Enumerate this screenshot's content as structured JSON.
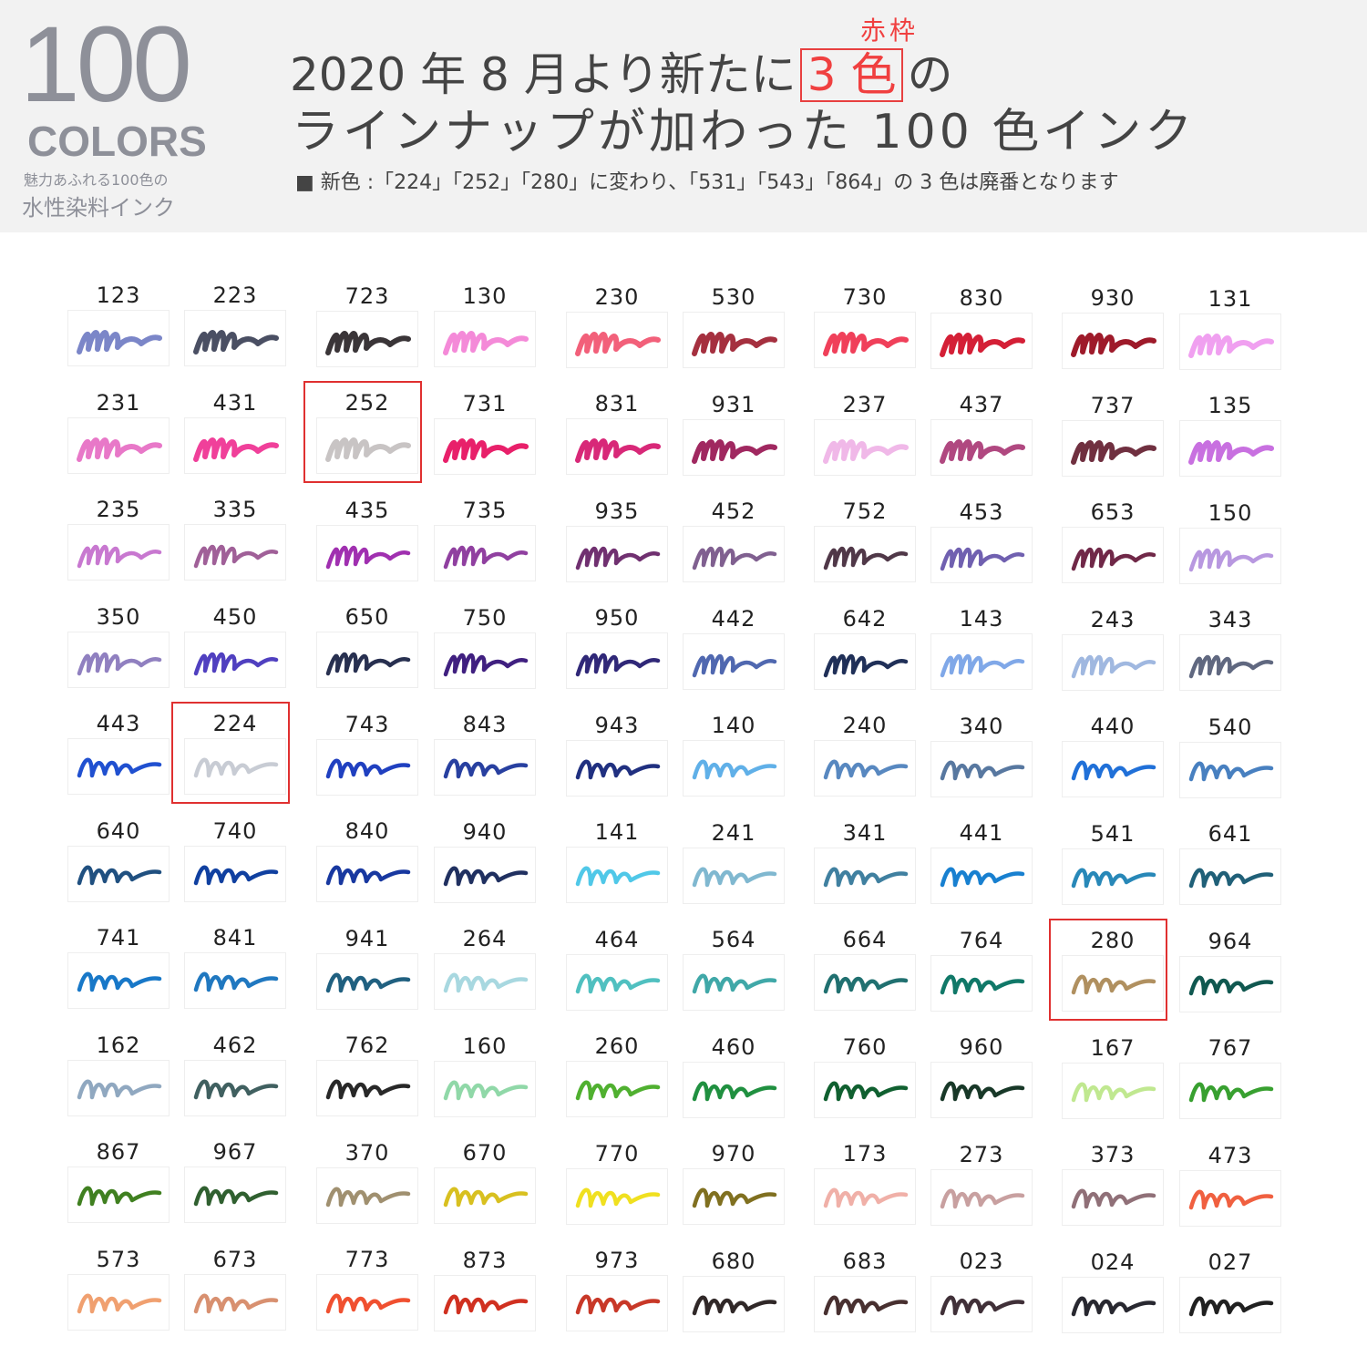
{
  "header": {
    "big_number": "100",
    "colors_label": "COLORS",
    "tagline_1": "魅力あふれる100色の",
    "tagline_2": "水性染料インク",
    "headline_pre": "2020 年 8 月より新たに",
    "headline_highlight": "3 色",
    "headline_post": "の",
    "highlight_note": "赤枠",
    "headline_line2": "ラインナップが加わった 100 色インク",
    "subnote": "■ 新色 :「224」「252」「280」に変わり、「531」「543」「864」の 3 色は廃番となります",
    "accent_color": "#e84040"
  },
  "swatches": [
    {
      "code": "123",
      "color": "#7b86c8"
    },
    {
      "code": "223",
      "color": "#4a4f63"
    },
    {
      "code": "723",
      "color": "#3a3538"
    },
    {
      "code": "130",
      "color": "#f48ad8"
    },
    {
      "code": "230",
      "color": "#f2607a"
    },
    {
      "code": "530",
      "color": "#a5303f"
    },
    {
      "code": "730",
      "color": "#f0405a"
    },
    {
      "code": "830",
      "color": "#d41f36"
    },
    {
      "code": "930",
      "color": "#9e1a2a"
    },
    {
      "code": "131",
      "color": "#f0a0f0"
    },
    {
      "code": "231",
      "color": "#e878c8"
    },
    {
      "code": "431",
      "color": "#f0409a"
    },
    {
      "code": "252",
      "color": "#c8c4c4",
      "new": true
    },
    {
      "code": "731",
      "color": "#e8206a"
    },
    {
      "code": "831",
      "color": "#d82878"
    },
    {
      "code": "931",
      "color": "#a02860"
    },
    {
      "code": "237",
      "color": "#f0b8e8"
    },
    {
      "code": "437",
      "color": "#b04880"
    },
    {
      "code": "737",
      "color": "#703040"
    },
    {
      "code": "135",
      "color": "#c870e0"
    },
    {
      "code": "235",
      "color": "#c878d0"
    },
    {
      "code": "335",
      "color": "#a06098"
    },
    {
      "code": "435",
      "color": "#a030b0"
    },
    {
      "code": "735",
      "color": "#9040a0"
    },
    {
      "code": "935",
      "color": "#703070"
    },
    {
      "code": "452",
      "color": "#806090"
    },
    {
      "code": "752",
      "color": "#503848"
    },
    {
      "code": "453",
      "color": "#7060b0"
    },
    {
      "code": "653",
      "color": "#702848"
    },
    {
      "code": "150",
      "color": "#b898e0"
    },
    {
      "code": "350",
      "color": "#9080c0"
    },
    {
      "code": "450",
      "color": "#5040c0"
    },
    {
      "code": "650",
      "color": "#283050"
    },
    {
      "code": "750",
      "color": "#402080"
    },
    {
      "code": "950",
      "color": "#302878"
    },
    {
      "code": "442",
      "color": "#5068b0"
    },
    {
      "code": "642",
      "color": "#203058"
    },
    {
      "code": "143",
      "color": "#80a8e8"
    },
    {
      "code": "243",
      "color": "#a0b8e0"
    },
    {
      "code": "343",
      "color": "#606880"
    },
    {
      "code": "443",
      "color": "#2050d0"
    },
    {
      "code": "224",
      "color": "#c8ccd4",
      "new": true
    },
    {
      "code": "743",
      "color": "#2040c0"
    },
    {
      "code": "843",
      "color": "#2840a0"
    },
    {
      "code": "943",
      "color": "#203080"
    },
    {
      "code": "140",
      "color": "#60b0e8"
    },
    {
      "code": "240",
      "color": "#5888c0"
    },
    {
      "code": "340",
      "color": "#5878a0"
    },
    {
      "code": "440",
      "color": "#2070d8"
    },
    {
      "code": "540",
      "color": "#4880c0"
    },
    {
      "code": "640",
      "color": "#205080"
    },
    {
      "code": "740",
      "color": "#1040a0"
    },
    {
      "code": "840",
      "color": "#1838a0"
    },
    {
      "code": "940",
      "color": "#203060"
    },
    {
      "code": "141",
      "color": "#50c8e8"
    },
    {
      "code": "241",
      "color": "#80b8d0"
    },
    {
      "code": "341",
      "color": "#4080a0"
    },
    {
      "code": "441",
      "color": "#1880d0"
    },
    {
      "code": "541",
      "color": "#2888b8"
    },
    {
      "code": "641",
      "color": "#206078"
    },
    {
      "code": "741",
      "color": "#1878c8"
    },
    {
      "code": "841",
      "color": "#2078c0"
    },
    {
      "code": "941",
      "color": "#206080"
    },
    {
      "code": "264",
      "color": "#a8d8e0"
    },
    {
      "code": "464",
      "color": "#50c0c0"
    },
    {
      "code": "564",
      "color": "#40a8a8"
    },
    {
      "code": "664",
      "color": "#207070"
    },
    {
      "code": "764",
      "color": "#107868"
    },
    {
      "code": "280",
      "color": "#b09060",
      "new": true
    },
    {
      "code": "964",
      "color": "#105850"
    },
    {
      "code": "162",
      "color": "#90a8c0"
    },
    {
      "code": "462",
      "color": "#406060"
    },
    {
      "code": "762",
      "color": "#282828"
    },
    {
      "code": "160",
      "color": "#90d8a8"
    },
    {
      "code": "260",
      "color": "#50b030"
    },
    {
      "code": "460",
      "color": "#209040"
    },
    {
      "code": "760",
      "color": "#106030"
    },
    {
      "code": "960",
      "color": "#183828"
    },
    {
      "code": "167",
      "color": "#c0e890"
    },
    {
      "code": "767",
      "color": "#38a030"
    },
    {
      "code": "867",
      "color": "#408020"
    },
    {
      "code": "967",
      "color": "#306030"
    },
    {
      "code": "370",
      "color": "#a09070"
    },
    {
      "code": "670",
      "color": "#d8c020"
    },
    {
      "code": "770",
      "color": "#f0e020"
    },
    {
      "code": "970",
      "color": "#807020"
    },
    {
      "code": "173",
      "color": "#f0b0a8"
    },
    {
      "code": "273",
      "color": "#c8a0a0"
    },
    {
      "code": "373",
      "color": "#907078"
    },
    {
      "code": "473",
      "color": "#f06040"
    },
    {
      "code": "573",
      "color": "#f0a070"
    },
    {
      "code": "673",
      "color": "#d89070"
    },
    {
      "code": "773",
      "color": "#f05030"
    },
    {
      "code": "873",
      "color": "#d03020"
    },
    {
      "code": "973",
      "color": "#c83828"
    },
    {
      "code": "680",
      "color": "#302828"
    },
    {
      "code": "683",
      "color": "#483030"
    },
    {
      "code": "023",
      "color": "#403038"
    },
    {
      "code": "024",
      "color": "#282830"
    },
    {
      "code": "027",
      "color": "#202020"
    }
  ]
}
